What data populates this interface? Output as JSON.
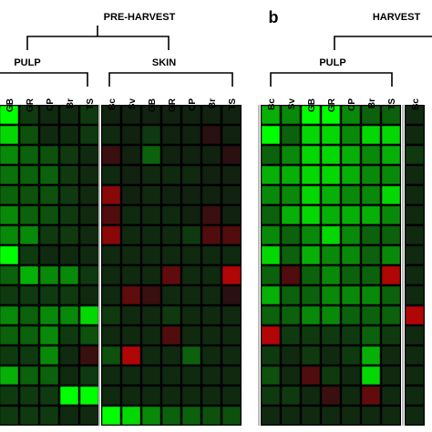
{
  "chart_data": {
    "type": "heatmap",
    "zlim": [
      -3,
      3
    ],
    "negative_color": "#ff0000",
    "positive_color": "#00ff00",
    "panel_label": "b",
    "groups": [
      "PRE-HARVEST",
      "HARVEST"
    ],
    "panels": [
      {
        "name": "PULP",
        "columns": [
          "GB",
          "GR",
          "CP",
          "Br",
          "TS"
        ],
        "values": [
          [
            3,
            0.5,
            0.3,
            0.3,
            0.5
          ],
          [
            2.5,
            0.8,
            0.3,
            0.3,
            0.5
          ],
          [
            1.5,
            1,
            0.8,
            0.5,
            0.3
          ],
          [
            1.2,
            1,
            1,
            0.5,
            0.3
          ],
          [
            1,
            0.8,
            0.8,
            0.5,
            0.3
          ],
          [
            1.5,
            1,
            0.8,
            0.5,
            0.3
          ],
          [
            1.5,
            1.5,
            0.5,
            0.5,
            0.3
          ],
          [
            3,
            0.5,
            0.3,
            0.3,
            0.3
          ],
          [
            1,
            2,
            1.5,
            1.5,
            0.5
          ],
          [
            0.5,
            0.5,
            0.5,
            0.5,
            0.3
          ],
          [
            1.5,
            1,
            1.5,
            1.5,
            2.5
          ],
          [
            1,
            1,
            1.5,
            0.5,
            0.8
          ],
          [
            0.5,
            0.5,
            1.5,
            0.3,
            -0.5
          ],
          [
            2,
            1,
            1,
            0.3,
            0.5
          ],
          [
            0.5,
            0.5,
            0.5,
            3,
            3
          ],
          [
            0.5,
            0.5,
            0.5,
            0.3,
            0.3
          ]
        ]
      },
      {
        "name": "SKIN",
        "columns": [
          "Bc",
          "Sv",
          "GB",
          "GR",
          "CP",
          "Br",
          "TS"
        ],
        "values": [
          [
            0.2,
            0.2,
            0.2,
            0.2,
            0.2,
            0.2,
            0.2
          ],
          [
            0.3,
            0.2,
            0.5,
            0.2,
            0.2,
            -0.3,
            0.2
          ],
          [
            -0.5,
            0.2,
            1,
            0.2,
            0.2,
            0.2,
            -0.3
          ],
          [
            0.3,
            0.2,
            0.3,
            0.3,
            0.3,
            0.2,
            0.2
          ],
          [
            -1.5,
            0.2,
            0.3,
            0.2,
            0.2,
            0.2,
            0.2
          ],
          [
            -0.8,
            0.3,
            0.3,
            0.3,
            0.2,
            -0.5,
            0.2
          ],
          [
            -1.5,
            0.3,
            0.3,
            0.3,
            0.5,
            -0.8,
            -0.8
          ],
          [
            0.3,
            0.3,
            0.3,
            0.3,
            0.3,
            0.3,
            0.3
          ],
          [
            0.3,
            0.3,
            0.3,
            -1,
            0.3,
            0.3,
            -2
          ],
          [
            0.3,
            -1,
            -0.5,
            0.3,
            0.3,
            0.3,
            -0.3
          ],
          [
            0.5,
            0.3,
            0.3,
            0.5,
            0.3,
            0.3,
            0.3
          ],
          [
            0.3,
            0.3,
            0.3,
            -0.8,
            0.3,
            0.3,
            0.3
          ],
          [
            0.8,
            -2,
            0.3,
            0.3,
            1,
            0.3,
            0.3
          ],
          [
            0.3,
            0.3,
            0.3,
            0.3,
            0.3,
            0.3,
            0.3
          ],
          [
            0.3,
            0.3,
            0.3,
            0.3,
            0.3,
            0.3,
            0.3
          ],
          [
            3,
            2.5,
            1.5,
            1,
            1,
            0.8,
            0.8
          ]
        ]
      },
      {
        "name": "PULP",
        "columns": [
          "Bc",
          "Sv",
          "GB",
          "GR",
          "CP",
          "Br",
          "TS"
        ],
        "values": [
          [
            2,
            1.5,
            3,
            3,
            1.5,
            1,
            1
          ],
          [
            3,
            1,
            2.5,
            2.5,
            1.5,
            2.5,
            2.5
          ],
          [
            1,
            1.5,
            2.5,
            2.5,
            2,
            1.5,
            2
          ],
          [
            2,
            2,
            2.5,
            2.5,
            2,
            1.5,
            1.5
          ],
          [
            1.5,
            1.5,
            2.5,
            2,
            1.5,
            1.5,
            2.5
          ],
          [
            1,
            2,
            2.5,
            2,
            2,
            2,
            1.5
          ],
          [
            1.5,
            1,
            1.5,
            2.5,
            1.5,
            1,
            1
          ],
          [
            2.5,
            1,
            2,
            1.5,
            1.5,
            1,
            1.5
          ],
          [
            1,
            -0.8,
            1,
            1.5,
            1,
            1,
            -2
          ],
          [
            2,
            1,
            1,
            1.5,
            1.5,
            1.5,
            1
          ],
          [
            1,
            1,
            1.5,
            1.5,
            1,
            1,
            1
          ],
          [
            -2,
            0.5,
            0.5,
            0.5,
            0.5,
            1,
            0.5
          ],
          [
            0.5,
            0.3,
            0.5,
            0.3,
            0.5,
            2,
            0.3
          ],
          [
            0.8,
            0.3,
            -0.8,
            0.5,
            0.3,
            2.5,
            0.3
          ],
          [
            0.5,
            0.5,
            0.3,
            -0.5,
            0.3,
            -1,
            0.3
          ],
          [
            0.3,
            0.3,
            0.3,
            0.3,
            0.3,
            0.3,
            0.3
          ]
        ]
      },
      {
        "columns": [
          "Bc"
        ],
        "values": [
          [
            0.3
          ],
          [
            0.3
          ],
          [
            0.5
          ],
          [
            0.3
          ],
          [
            0.3
          ],
          [
            0.3
          ],
          [
            0.3
          ],
          [
            0.3
          ],
          [
            0.3
          ],
          [
            0.3
          ],
          [
            -2
          ],
          [
            0.3
          ],
          [
            0.3
          ],
          [
            0.3
          ],
          [
            0.3
          ],
          [
            0.3
          ]
        ]
      }
    ]
  }
}
